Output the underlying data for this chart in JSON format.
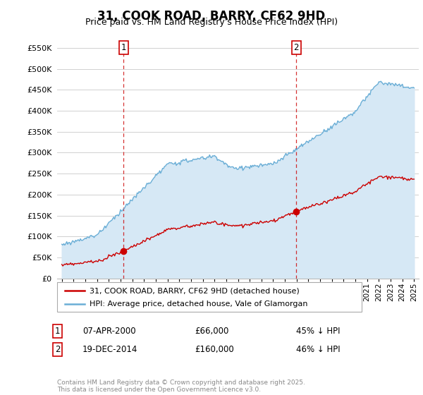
{
  "title": "31, COOK ROAD, BARRY, CF62 9HD",
  "subtitle": "Price paid vs. HM Land Registry's House Price Index (HPI)",
  "red_label": "31, COOK ROAD, BARRY, CF62 9HD (detached house)",
  "blue_label": "HPI: Average price, detached house, Vale of Glamorgan",
  "annotation1_date": "07-APR-2000",
  "annotation1_price": "£66,000",
  "annotation1_pct": "45% ↓ HPI",
  "annotation2_date": "19-DEC-2014",
  "annotation2_price": "£160,000",
  "annotation2_pct": "46% ↓ HPI",
  "footer": "Contains HM Land Registry data © Crown copyright and database right 2025.\nThis data is licensed under the Open Government Licence v3.0.",
  "ylim": [
    0,
    570000
  ],
  "yticks": [
    0,
    50000,
    100000,
    150000,
    200000,
    250000,
    300000,
    350000,
    400000,
    450000,
    500000,
    550000
  ],
  "red_color": "#cc0000",
  "blue_color": "#6aaed6",
  "blue_fill_color": "#d6e8f5",
  "background_color": "#ffffff",
  "grid_color": "#d0d0d0",
  "sale1_year": 2000.27,
  "sale1_price": 66000,
  "sale2_year": 2014.97,
  "sale2_price": 160000,
  "xmin": 1995,
  "xmax": 2025
}
